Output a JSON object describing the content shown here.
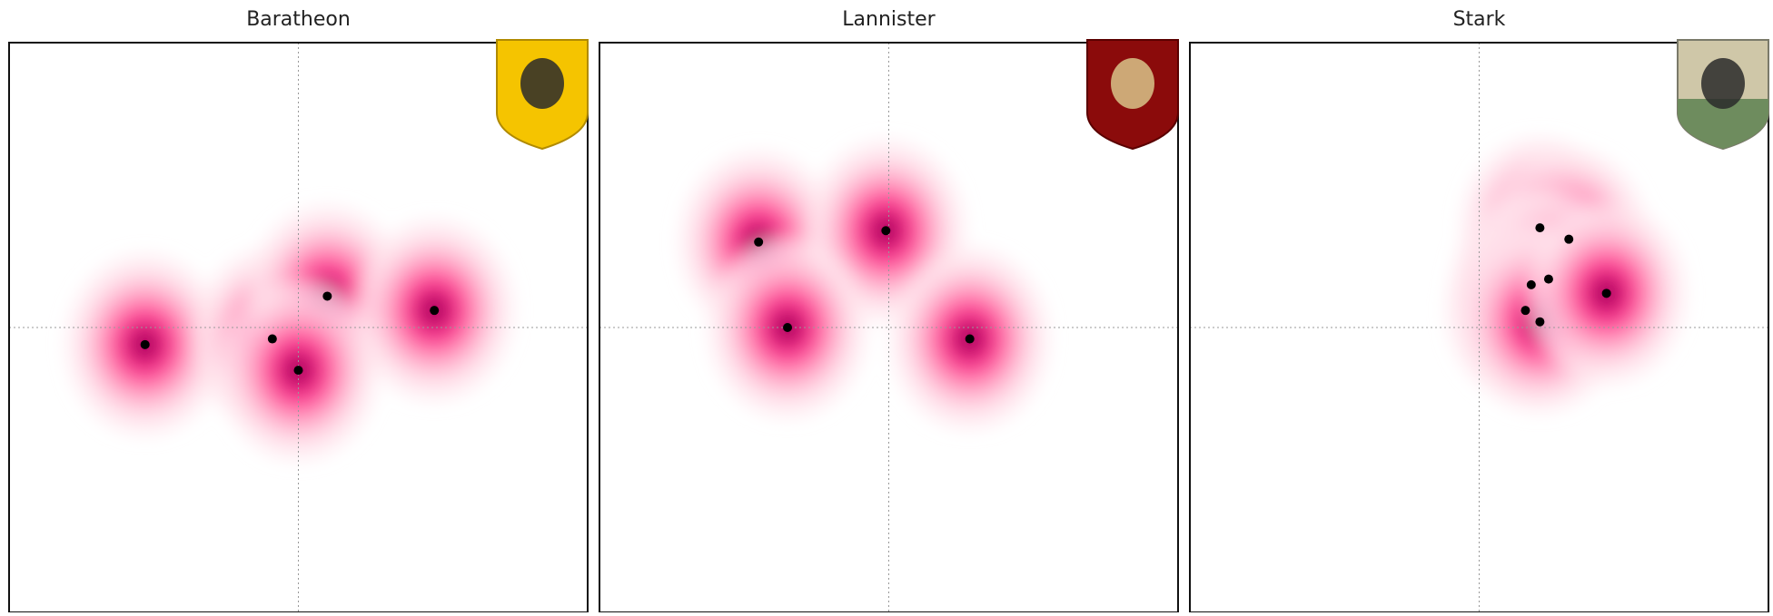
{
  "chart_data": [
    {
      "type": "scatter",
      "title": "Baratheon",
      "color": "#000000",
      "x": [
        -0.53,
        -0.09,
        0.1,
        0.0,
        0.47
      ],
      "y": [
        -0.06,
        -0.04,
        0.11,
        -0.15,
        0.06
      ],
      "xlim": [
        -1,
        1
      ],
      "ylim": [
        -1,
        1
      ]
    },
    {
      "type": "scatter",
      "title": "Lannister",
      "color": "#000000",
      "x": [
        -0.45,
        -0.01,
        -0.35,
        0.28
      ],
      "y": [
        0.3,
        0.34,
        0.0,
        -0.04
      ],
      "xlim": [
        -1,
        1
      ],
      "ylim": [
        -1,
        1
      ]
    },
    {
      "type": "scatter",
      "title": "Stark",
      "color": "#000000",
      "x": [
        0.21,
        0.31,
        0.18,
        0.24,
        0.16,
        0.21,
        0.44
      ],
      "y": [
        0.35,
        0.31,
        0.15,
        0.17,
        0.06,
        0.02,
        0.12
      ],
      "xlim": [
        -1,
        1
      ],
      "ylim": [
        -1,
        1
      ]
    }
  ]
}
